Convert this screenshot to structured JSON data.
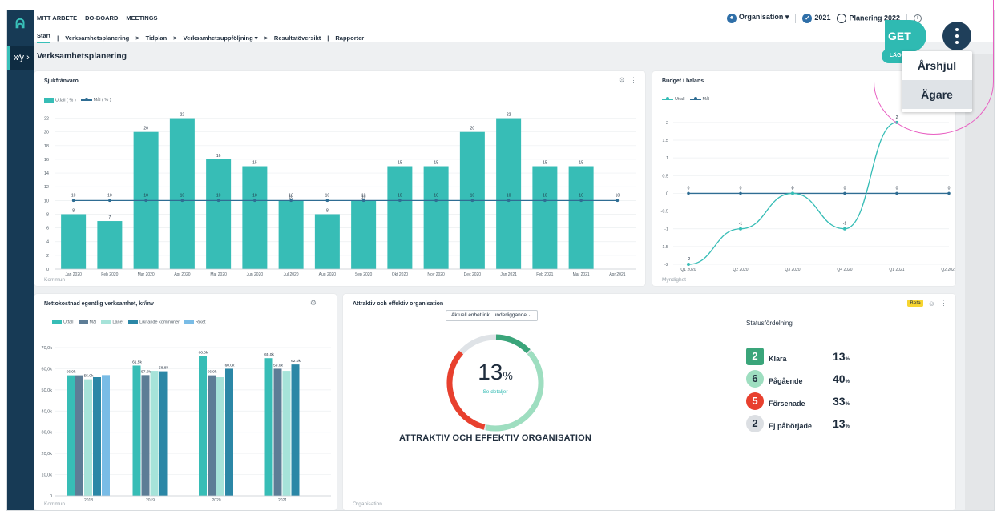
{
  "nav": {
    "top_items": [
      "MITT ARBETE",
      "DO-BOARD",
      "MEETINGS"
    ],
    "sub_items": [
      {
        "label": "Start",
        "after": "|"
      },
      {
        "label": "Verksamhetsplanering",
        "after": ">"
      },
      {
        "label": "Tidplan",
        "after": ">"
      },
      {
        "label": "Verksamhetsuppföljning ▾",
        "after": ">"
      },
      {
        "label": "Resultatöversikt",
        "after": "|"
      },
      {
        "label": "Rapporter",
        "after": ""
      }
    ],
    "org_label": "Organisation ▾",
    "year_2021": "2021",
    "year_plan": "Planering 2022"
  },
  "page": {
    "title": "Verksamhetsplanering",
    "add_button": "LÄGG"
  },
  "overlay": {
    "get_button": "GET",
    "menu_items": [
      "Årshjul",
      "Ägare"
    ],
    "highlighted_index": 1
  },
  "cards": {
    "sick": {
      "title": "Sjukfrånvaro",
      "footer": "Kommun",
      "legend": [
        "Utfall ( % )",
        "Mål ( % )"
      ]
    },
    "budget": {
      "title": "Budget i balans",
      "footer": "Myndighet",
      "legend": [
        "Utfall",
        "Mål"
      ]
    },
    "netcost": {
      "title": "Nettokostnad egentlig verksamhet, kr/inv",
      "footer": "Kommun",
      "legend": [
        "Utfall",
        "Mål",
        "Länet",
        "Liknande kommuner",
        "Riket"
      ]
    },
    "attractive": {
      "title": "Attraktiv och effektiv organisation",
      "beta": "Beta",
      "dropdown": "Aktuell enhet inkl. underliggande",
      "gauge_value": "13",
      "gauge_unit": "%",
      "gauge_link": "Se detaljer",
      "gauge_title": "ATTRAKTIV OCH EFFEKTIV ORGANISATION",
      "status_title": "Statusfördelning",
      "status": [
        {
          "count": "2",
          "label": "Klara",
          "pct": "13",
          "color": "#3aa57a"
        },
        {
          "count": "6",
          "label": "Pågående",
          "pct": "40",
          "color": "#9edec0"
        },
        {
          "count": "5",
          "label": "Försenade",
          "pct": "33",
          "color": "#e8402e"
        },
        {
          "count": "2",
          "label": "Ej påbörjade",
          "pct": "13",
          "color": "#dcdfe3"
        }
      ],
      "footer": "Organisation"
    }
  },
  "chart_data": [
    {
      "type": "bar",
      "title": "Sjukfrånvaro",
      "categories": [
        "Jan 2020",
        "Feb 2020",
        "Mar 2020",
        "Apr 2020",
        "Maj 2020",
        "Jun 2020",
        "Jul 2020",
        "Aug 2020",
        "Sep 2020",
        "Okt 2020",
        "Nov 2020",
        "Dec 2020",
        "Jan 2021",
        "Feb 2021",
        "Mar 2021",
        "Apr 2021"
      ],
      "series": [
        {
          "name": "Utfall ( % )",
          "values": [
            8,
            7,
            20,
            22,
            16,
            15,
            10,
            8,
            10,
            15,
            15,
            20,
            22,
            15,
            15,
            null
          ],
          "color": "#37bdb6"
        },
        {
          "name": "Mål ( % )",
          "type": "line",
          "values": [
            10,
            10,
            10,
            10,
            10,
            10,
            10,
            10,
            10,
            10,
            10,
            10,
            10,
            10,
            10,
            10
          ],
          "color": "#2f6d93"
        }
      ],
      "ylim": [
        0,
        23
      ],
      "yticks": [
        0,
        2,
        4,
        6,
        8,
        10,
        12,
        14,
        16,
        18,
        20,
        22
      ]
    },
    {
      "type": "line",
      "title": "Budget i balans",
      "categories": [
        "Q1 2020",
        "Q2 2020",
        "Q3 2020",
        "Q4 2020",
        "Q1 2021",
        "Q2 2021"
      ],
      "series": [
        {
          "name": "Utfall",
          "values": [
            -2,
            -1,
            0,
            -1,
            2,
            null
          ],
          "color": "#37bdb6"
        },
        {
          "name": "Mål",
          "values": [
            0,
            0,
            0,
            0,
            0,
            0
          ],
          "color": "#2f6d93"
        }
      ],
      "ylim": [
        -2,
        2.2
      ],
      "yticks": [
        -2,
        -1.5,
        -1,
        -0.5,
        0,
        0.5,
        1,
        1.5,
        2
      ]
    },
    {
      "type": "bar",
      "title": "Nettokostnad egentlig verksamhet, kr/inv",
      "categories": [
        "2018",
        "2019",
        "2020",
        "2021"
      ],
      "series": [
        {
          "name": "Utfall",
          "values": [
            56.9,
            61.5,
            66.0,
            65.0
          ],
          "color": "#37bdb6"
        },
        {
          "name": "Mål",
          "values": [
            56.9,
            57.0,
            56.9,
            60.0
          ],
          "color": "#5d7d96"
        },
        {
          "name": "Länet",
          "values": [
            55.0,
            59.0,
            56.0,
            59.0
          ],
          "color": "#a6e3d9"
        },
        {
          "name": "Liknande kommuner",
          "values": [
            56.0,
            58.8,
            60.0,
            62.0
          ],
          "color": "#2b87a6"
        },
        {
          "name": "Riket",
          "values": [
            57.0,
            null,
            null,
            null
          ],
          "color": "#79bce6"
        }
      ],
      "labels": [
        [
          "56.9k",
          "55.0k"
        ],
        [
          "61.5k",
          "57.0k",
          "58.8k"
        ],
        [
          "66.0k",
          "56.9k",
          "60.0k"
        ],
        [
          "65.0k",
          "59.0k",
          "62.0k"
        ]
      ],
      "ylim": [
        0,
        70
      ],
      "ytick_labels": [
        "0",
        "10,0k",
        "20,0k",
        "30,0k",
        "40,0k",
        "50,0k",
        "60,0k",
        "70,0k"
      ]
    }
  ]
}
